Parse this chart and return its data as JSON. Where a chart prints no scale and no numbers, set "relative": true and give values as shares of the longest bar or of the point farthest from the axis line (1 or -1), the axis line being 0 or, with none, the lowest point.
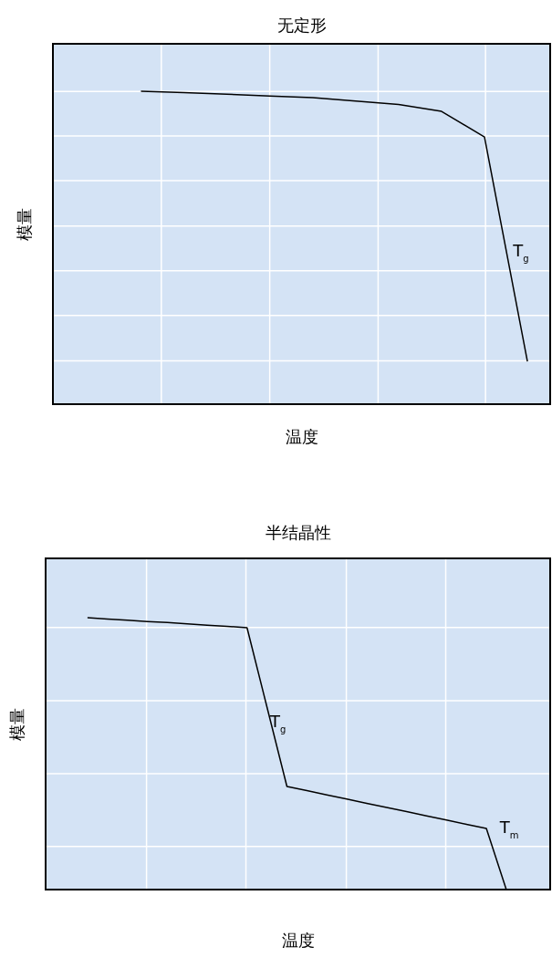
{
  "chart_data": [
    {
      "type": "line",
      "title": "无定形",
      "xlabel": "温度",
      "ylabel": "模量",
      "relative": true,
      "grid": true,
      "marker": "none",
      "line_style": "solid",
      "categories": [
        null,
        null,
        null,
        null,
        null,
        null,
        null,
        null,
        null,
        null
      ],
      "series": [
        {
          "color": "#000000",
          "values": [
            1,
            0.996,
            0.991,
            0.985,
            0.98,
            0.969,
            0.958,
            0.936,
            0.854,
            0.137
          ]
        }
      ],
      "annotations": [
        "T$_{g}$"
      ]
    },
    {
      "type": "line",
      "title": "半结晶性",
      "xlabel": "温度",
      "ylabel": "模量",
      "relative": true,
      "grid": true,
      "marker": "none",
      "line_style": "solid",
      "categories": [
        null,
        null,
        null,
        null,
        null,
        null,
        null,
        null,
        null,
        null,
        null,
        null,
        null,
        null,
        null,
        null,
        null,
        null,
        null,
        null,
        null,
        null
      ],
      "series": [
        {
          "color": "#000000",
          "values": [
            1,
            0.995,
            0.991,
            0.986,
            0.982,
            0.977,
            0.972,
            0.968,
            0.963,
            0.671,
            0.379,
            0.364,
            0.348,
            0.333,
            0.317,
            0.302,
            0.287,
            0.271,
            0.256,
            0.24,
            0.225,
            0
          ]
        }
      ],
      "annotations": [
        "T$_{g}$",
        "T$_{m}$"
      ]
    }
  ]
}
